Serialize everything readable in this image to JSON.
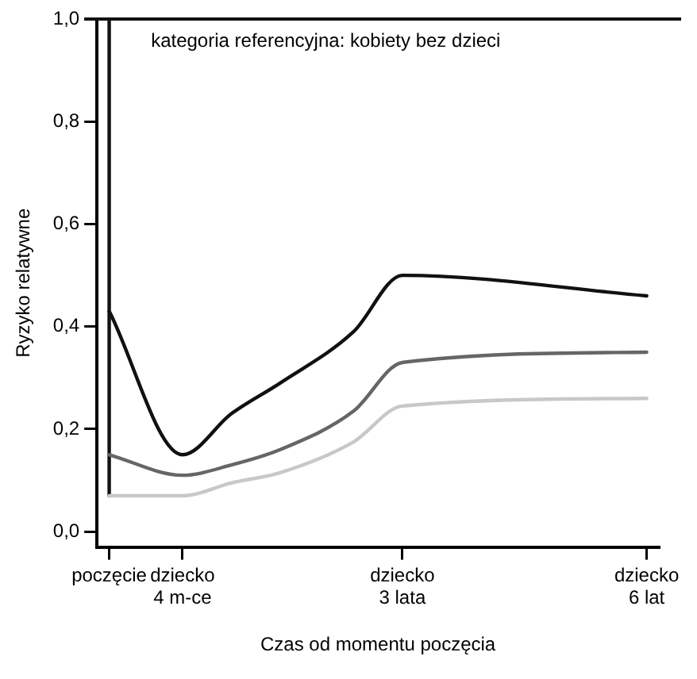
{
  "chart_data": {
    "type": "line",
    "xlabel": "Czas od momentu poczęcia",
    "ylabel": "Ryzyko relatywne",
    "annotations": [
      "kategoria referencyjna: kobiety bez dzieci"
    ],
    "categories": [
      "poczęcie",
      null,
      null,
      "dziecko 4 m-ce",
      null,
      null,
      null,
      null,
      null,
      null,
      null,
      null,
      "dziecko 3 lata",
      null,
      null,
      null,
      null,
      null,
      null,
      null,
      null,
      null,
      "dziecko 6 lat"
    ],
    "series": [
      {
        "color": "#111111",
        "values": [
          0.43,
          null,
          null,
          0.15,
          null,
          0.23,
          null,
          0.29,
          null,
          null,
          0.39,
          null,
          0.5,
          null,
          null,
          null,
          null,
          null,
          null,
          null,
          null,
          null,
          0.46
        ]
      },
      {
        "color": "#666666",
        "values": [
          0.15,
          null,
          null,
          0.11,
          null,
          0.13,
          null,
          0.16,
          null,
          null,
          0.235,
          null,
          0.33,
          null,
          null,
          null,
          null,
          null,
          null,
          null,
          null,
          null,
          0.35
        ]
      },
      {
        "color": "#c8c8c8",
        "values": [
          0.07,
          null,
          null,
          0.07,
          null,
          0.095,
          null,
          0.115,
          null,
          null,
          0.175,
          null,
          0.245,
          null,
          null,
          null,
          null,
          null,
          null,
          null,
          null,
          null,
          0.26
        ]
      },
      {
        "color": "#111111",
        "x": [
          "poczęcie",
          "poczęcie"
        ],
        "values": [
          0.07,
          1.0
        ]
      }
    ],
    "ref_lines": [
      {
        "axis": "y",
        "value": 1.0,
        "color": "#111111"
      }
    ],
    "ylim": [
      -0.03,
      1.0
    ],
    "yticks": [
      {
        "value": 0,
        "label": "0,0"
      },
      {
        "value": 0.2,
        "label": "0,2"
      },
      {
        "value": 0.4,
        "label": "0,4"
      },
      {
        "value": 0.6,
        "label": "0,6"
      },
      {
        "value": 0.8,
        "label": "0,8"
      },
      {
        "value": 1.0,
        "label": "1,0"
      }
    ],
    "grid": false,
    "legend": false,
    "marker": "none",
    "line_style": "solid"
  }
}
